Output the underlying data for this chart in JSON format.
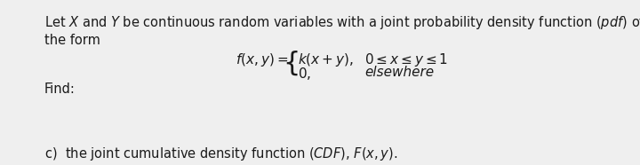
{
  "bg_color": "#efefef",
  "text_color": "#1a1a1a",
  "fs_body": 10.5,
  "fs_formula": 11.0,
  "fs_find": 10.5,
  "fs_partc": 10.5,
  "line1": "Let $X$ and $Y$ be continuous random variables with a joint probability density function $(pdf)$ of",
  "line2": "the form",
  "formula_lhs": "$f(x, y) =$",
  "formula_row1": "$k(x + y),$",
  "formula_cond1": "$0 \\leq x \\leq y \\leq 1$",
  "formula_row2": "$0,$",
  "formula_cond2": "elsewhere",
  "find_label": "Find:",
  "part_c": "c)  the joint cumulative density function $(CDF)$, $F(x, y)$."
}
